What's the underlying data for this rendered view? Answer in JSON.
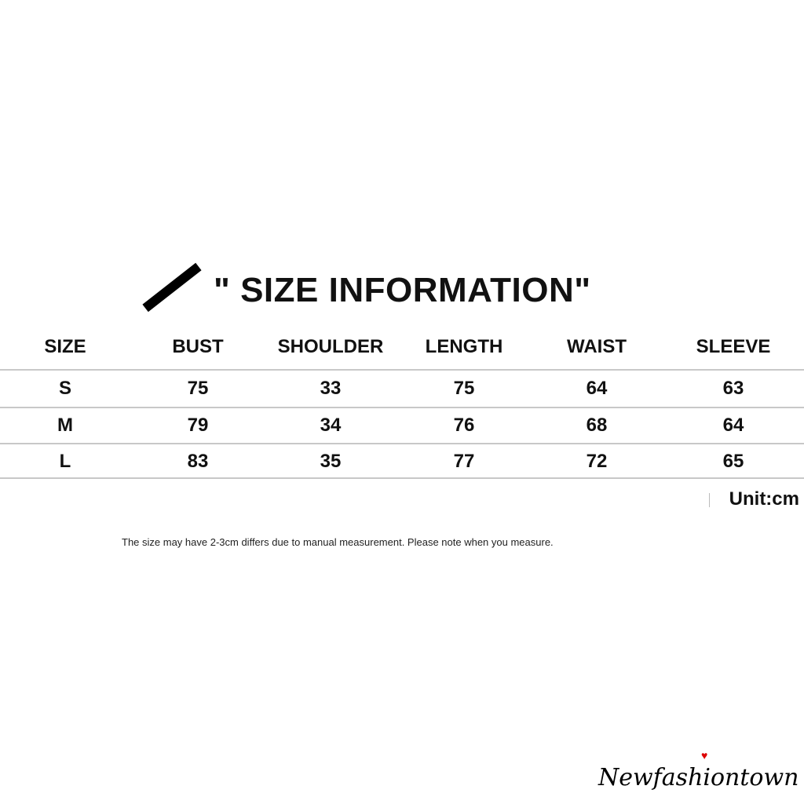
{
  "title": "\" SIZE INFORMATION\"",
  "table": {
    "headers": [
      "SIZE",
      "BUST",
      "SHOULDER",
      "LENGTH",
      "WAIST",
      "SLEEVE"
    ],
    "rows": [
      [
        "S",
        "75",
        "33",
        "75",
        "64",
        "63"
      ],
      [
        "M",
        "79",
        "34",
        "76",
        "68",
        "64"
      ],
      [
        "L",
        "83",
        "35",
        "77",
        "72",
        "65"
      ]
    ]
  },
  "unit": "Unit:cm",
  "note": "The size may have 2-3cm differs due to manual measurement. Please note when you measure.",
  "logo": {
    "text": "Newfashiontown",
    "heart_color": "#d00000"
  }
}
